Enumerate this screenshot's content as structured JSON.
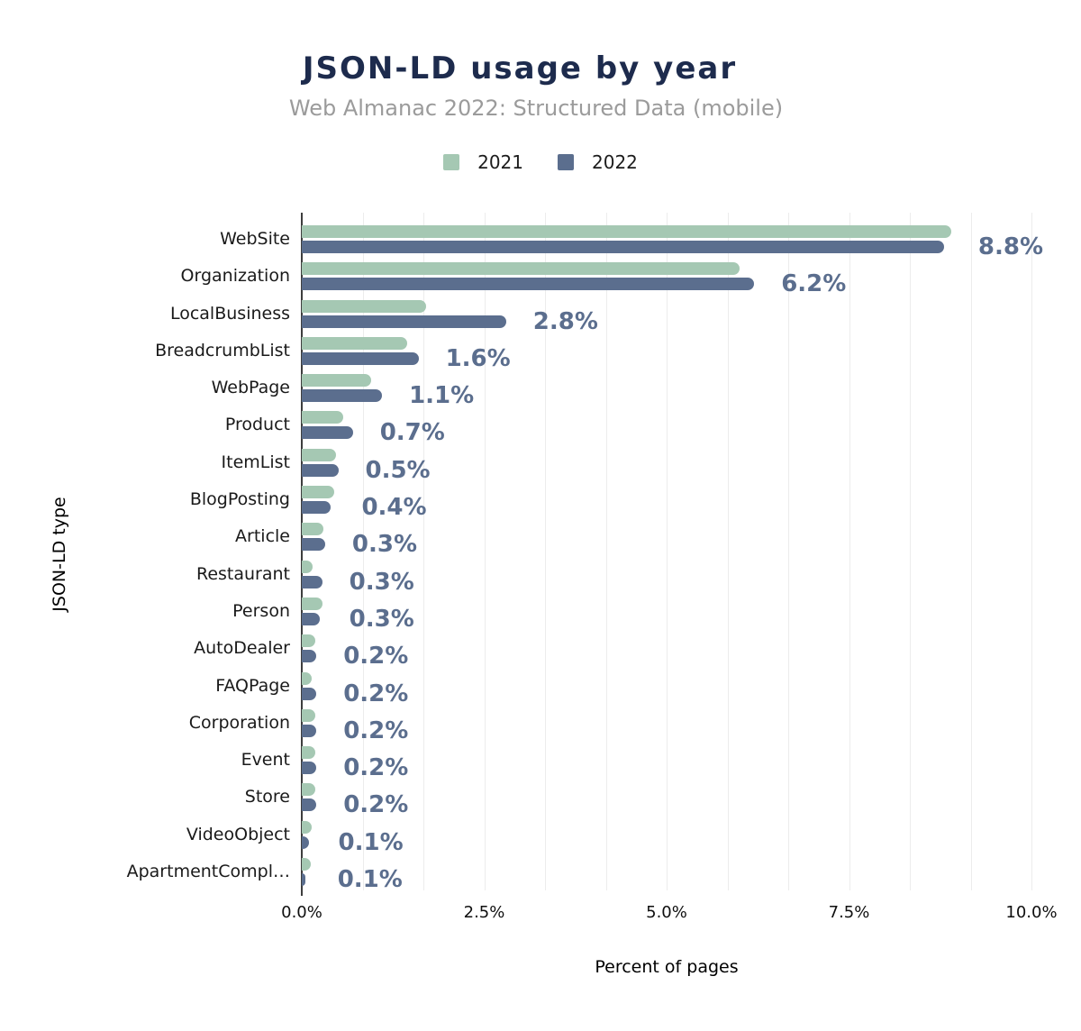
{
  "chart": {
    "title": "JSON-LD usage by year",
    "subtitle": "Web Almanac 2022: Structured Data (mobile)",
    "xlabel": "Percent of pages",
    "ylabel": "JSON-LD type"
  },
  "colors": {
    "series_2021": "#a5c8b3",
    "series_2022": "#5b6e8e",
    "value_label": "#5b6e8e",
    "title": "#1d2b4d",
    "subtitle": "#9b9b9b",
    "axis_line": "#3d3d3d",
    "gridline": "#ececec",
    "text": "#1a1a1a"
  },
  "chart_data": {
    "type": "bar",
    "orientation": "horizontal",
    "title": "JSON-LD usage by year",
    "subtitle": "Web Almanac 2022: Structured Data (mobile)",
    "xlabel": "Percent of pages",
    "ylabel": "JSON-LD type",
    "xlim": [
      0,
      10
    ],
    "x_ticks": [
      "0.0%",
      "2.5%",
      "5.0%",
      "7.5%",
      "10.0%"
    ],
    "x_tick_values": [
      0,
      2.5,
      5,
      7.5,
      10
    ],
    "legend_position": "top",
    "grid": "vertical gridlines, minor lines every 0.8333%",
    "categories": [
      "WebSite",
      "Organization",
      "LocalBusiness",
      "BreadcrumbList",
      "WebPage",
      "Product",
      "ItemList",
      "BlogPosting",
      "Article",
      "Restaurant",
      "Person",
      "AutoDealer",
      "FAQPage",
      "Corporation",
      "Event",
      "Store",
      "VideoObject",
      "ApartmentCompl…"
    ],
    "series": [
      {
        "name": "2021",
        "color": "#a5c8b3",
        "values": [
          8.9,
          6.0,
          1.7,
          1.45,
          0.95,
          0.57,
          0.47,
          0.45,
          0.3,
          0.15,
          0.28,
          0.18,
          0.13,
          0.18,
          0.18,
          0.18,
          0.13,
          0.12
        ]
      },
      {
        "name": "2022",
        "color": "#5b6e8e",
        "values": [
          8.8,
          6.2,
          2.8,
          1.6,
          1.1,
          0.7,
          0.5,
          0.4,
          0.32,
          0.28,
          0.25,
          0.2,
          0.2,
          0.2,
          0.2,
          0.2,
          0.1,
          0.05
        ]
      }
    ],
    "data_labels": [
      "8.8%",
      "6.2%",
      "2.8%",
      "1.6%",
      "1.1%",
      "0.7%",
      "0.5%",
      "0.4%",
      "0.3%",
      "0.3%",
      "0.3%",
      "0.2%",
      "0.2%",
      "0.2%",
      "0.2%",
      "0.2%",
      "0.1%",
      "0.1%"
    ],
    "data_label_series": "2022"
  }
}
